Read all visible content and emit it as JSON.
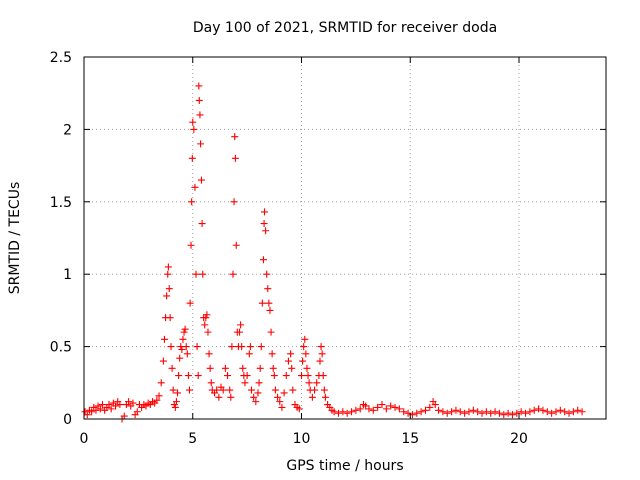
{
  "chart_data": {
    "type": "scatter",
    "title": "Day 100 of 2021, SRMTID for receiver doda",
    "xlabel": "GPS time / hours",
    "ylabel": "SRMTID / TECUs",
    "xlim": [
      0,
      24
    ],
    "ylim": [
      0,
      2.5
    ],
    "xticks": [
      0,
      5,
      10,
      15,
      20
    ],
    "xtick_labels": [
      "0",
      "5",
      "10",
      "15",
      "20"
    ],
    "yticks": [
      0,
      0.5,
      1,
      1.5,
      2,
      2.5
    ],
    "ytick_labels": [
      "0",
      "0.5",
      "1",
      "1.5",
      "2",
      "2.5"
    ],
    "grid": true,
    "marker": "+",
    "series": [
      {
        "name": "SRMTID",
        "color": "#ff0000",
        "points": [
          [
            0.05,
            0.05
          ],
          [
            0.15,
            0.03
          ],
          [
            0.25,
            0.06
          ],
          [
            0.35,
            0.05
          ],
          [
            0.45,
            0.08
          ],
          [
            0.55,
            0.06
          ],
          [
            0.65,
            0.09
          ],
          [
            0.75,
            0.07
          ],
          [
            0.85,
            0.1
          ],
          [
            0.95,
            0.06
          ],
          [
            1.05,
            0.08
          ],
          [
            1.15,
            0.1
          ],
          [
            1.25,
            0.07
          ],
          [
            1.35,
            0.11
          ],
          [
            1.45,
            0.09
          ],
          [
            1.55,
            0.12
          ],
          [
            1.65,
            0.1
          ],
          [
            1.75,
            0.0
          ],
          [
            1.85,
            0.02
          ],
          [
            1.95,
            0.1
          ],
          [
            2.05,
            0.12
          ],
          [
            2.15,
            0.09
          ],
          [
            2.25,
            0.11
          ],
          [
            2.35,
            0.03
          ],
          [
            2.45,
            0.05
          ],
          [
            2.55,
            0.1
          ],
          [
            2.65,
            0.08
          ],
          [
            2.75,
            0.1
          ],
          [
            2.85,
            0.09
          ],
          [
            2.95,
            0.11
          ],
          [
            3.05,
            0.1
          ],
          [
            3.15,
            0.12
          ],
          [
            3.25,
            0.11
          ],
          [
            3.35,
            0.13
          ],
          [
            3.45,
            0.16
          ],
          [
            3.55,
            0.25
          ],
          [
            3.65,
            0.4
          ],
          [
            3.7,
            0.55
          ],
          [
            3.75,
            0.7
          ],
          [
            3.8,
            0.85
          ],
          [
            3.85,
            1.0
          ],
          [
            3.88,
            1.05
          ],
          [
            3.92,
            0.9
          ],
          [
            3.96,
            0.7
          ],
          [
            4.0,
            0.5
          ],
          [
            4.05,
            0.35
          ],
          [
            4.1,
            0.2
          ],
          [
            4.15,
            0.1
          ],
          [
            4.2,
            0.08
          ],
          [
            4.25,
            0.12
          ],
          [
            4.3,
            0.18
          ],
          [
            4.35,
            0.3
          ],
          [
            4.4,
            0.42
          ],
          [
            4.45,
            0.5
          ],
          [
            4.5,
            0.48
          ],
          [
            4.55,
            0.55
          ],
          [
            4.6,
            0.6
          ],
          [
            4.65,
            0.62
          ],
          [
            4.7,
            0.5
          ],
          [
            4.75,
            0.45
          ],
          [
            4.8,
            0.3
          ],
          [
            4.85,
            0.2
          ],
          [
            4.88,
            0.8
          ],
          [
            4.92,
            1.2
          ],
          [
            4.95,
            1.5
          ],
          [
            4.98,
            1.8
          ],
          [
            5.0,
            2.05
          ],
          [
            5.05,
            2.0
          ],
          [
            5.1,
            1.6
          ],
          [
            5.15,
            1.0
          ],
          [
            5.2,
            0.5
          ],
          [
            5.25,
            0.3
          ],
          [
            5.28,
            2.3
          ],
          [
            5.3,
            2.2
          ],
          [
            5.33,
            2.1
          ],
          [
            5.36,
            1.9
          ],
          [
            5.4,
            1.65
          ],
          [
            5.43,
            1.35
          ],
          [
            5.46,
            1.0
          ],
          [
            5.5,
            0.7
          ],
          [
            5.55,
            0.65
          ],
          [
            5.6,
            0.7
          ],
          [
            5.65,
            0.72
          ],
          [
            5.7,
            0.6
          ],
          [
            5.75,
            0.45
          ],
          [
            5.8,
            0.35
          ],
          [
            5.85,
            0.25
          ],
          [
            5.9,
            0.2
          ],
          [
            6.0,
            0.18
          ],
          [
            6.1,
            0.2
          ],
          [
            6.2,
            0.15
          ],
          [
            6.3,
            0.22
          ],
          [
            6.4,
            0.2
          ],
          [
            6.5,
            0.35
          ],
          [
            6.6,
            0.3
          ],
          [
            6.7,
            0.2
          ],
          [
            6.75,
            0.15
          ],
          [
            6.8,
            0.5
          ],
          [
            6.85,
            1.0
          ],
          [
            6.9,
            1.5
          ],
          [
            6.93,
            1.95
          ],
          [
            6.96,
            1.8
          ],
          [
            7.0,
            1.2
          ],
          [
            7.05,
            0.6
          ],
          [
            7.1,
            0.5
          ],
          [
            7.15,
            0.6
          ],
          [
            7.2,
            0.65
          ],
          [
            7.25,
            0.5
          ],
          [
            7.3,
            0.35
          ],
          [
            7.35,
            0.3
          ],
          [
            7.4,
            0.25
          ],
          [
            7.5,
            0.3
          ],
          [
            7.6,
            0.45
          ],
          [
            7.65,
            0.5
          ],
          [
            7.7,
            0.2
          ],
          [
            7.8,
            0.15
          ],
          [
            7.9,
            0.12
          ],
          [
            8.0,
            0.18
          ],
          [
            8.05,
            0.25
          ],
          [
            8.1,
            0.35
          ],
          [
            8.15,
            0.5
          ],
          [
            8.2,
            0.8
          ],
          [
            8.25,
            1.1
          ],
          [
            8.28,
            1.35
          ],
          [
            8.3,
            1.43
          ],
          [
            8.35,
            1.3
          ],
          [
            8.4,
            1.0
          ],
          [
            8.45,
            0.9
          ],
          [
            8.5,
            0.8
          ],
          [
            8.55,
            0.75
          ],
          [
            8.6,
            0.6
          ],
          [
            8.65,
            0.45
          ],
          [
            8.7,
            0.35
          ],
          [
            8.75,
            0.3
          ],
          [
            8.8,
            0.2
          ],
          [
            8.9,
            0.15
          ],
          [
            9.0,
            0.12
          ],
          [
            9.1,
            0.08
          ],
          [
            9.2,
            0.18
          ],
          [
            9.3,
            0.3
          ],
          [
            9.4,
            0.4
          ],
          [
            9.5,
            0.45
          ],
          [
            9.55,
            0.35
          ],
          [
            9.6,
            0.2
          ],
          [
            9.7,
            0.1
          ],
          [
            9.8,
            0.08
          ],
          [
            9.9,
            0.07
          ],
          [
            10.0,
            0.3
          ],
          [
            10.05,
            0.4
          ],
          [
            10.1,
            0.5
          ],
          [
            10.15,
            0.55
          ],
          [
            10.2,
            0.45
          ],
          [
            10.25,
            0.35
          ],
          [
            10.3,
            0.3
          ],
          [
            10.35,
            0.25
          ],
          [
            10.4,
            0.2
          ],
          [
            10.5,
            0.15
          ],
          [
            10.6,
            0.2
          ],
          [
            10.7,
            0.25
          ],
          [
            10.8,
            0.3
          ],
          [
            10.85,
            0.4
          ],
          [
            10.9,
            0.5
          ],
          [
            10.95,
            0.45
          ],
          [
            11.0,
            0.3
          ],
          [
            11.05,
            0.2
          ],
          [
            11.1,
            0.15
          ],
          [
            11.2,
            0.1
          ],
          [
            11.3,
            0.08
          ],
          [
            11.4,
            0.06
          ],
          [
            11.5,
            0.05
          ],
          [
            11.7,
            0.04
          ],
          [
            11.9,
            0.05
          ],
          [
            12.1,
            0.04
          ],
          [
            12.3,
            0.05
          ],
          [
            12.5,
            0.06
          ],
          [
            12.7,
            0.07
          ],
          [
            12.85,
            0.1
          ],
          [
            12.95,
            0.09
          ],
          [
            13.1,
            0.07
          ],
          [
            13.3,
            0.06
          ],
          [
            13.5,
            0.08
          ],
          [
            13.7,
            0.1
          ],
          [
            13.9,
            0.07
          ],
          [
            14.1,
            0.09
          ],
          [
            14.3,
            0.08
          ],
          [
            14.5,
            0.07
          ],
          [
            14.7,
            0.05
          ],
          [
            14.9,
            0.04
          ],
          [
            15.1,
            0.03
          ],
          [
            15.3,
            0.04
          ],
          [
            15.5,
            0.05
          ],
          [
            15.7,
            0.06
          ],
          [
            15.9,
            0.08
          ],
          [
            16.05,
            0.12
          ],
          [
            16.15,
            0.1
          ],
          [
            16.3,
            0.06
          ],
          [
            16.5,
            0.05
          ],
          [
            16.7,
            0.04
          ],
          [
            16.9,
            0.05
          ],
          [
            17.1,
            0.06
          ],
          [
            17.3,
            0.05
          ],
          [
            17.5,
            0.04
          ],
          [
            17.7,
            0.05
          ],
          [
            17.9,
            0.06
          ],
          [
            18.1,
            0.05
          ],
          [
            18.3,
            0.04
          ],
          [
            18.5,
            0.05
          ],
          [
            18.7,
            0.04
          ],
          [
            18.9,
            0.05
          ],
          [
            19.1,
            0.04
          ],
          [
            19.3,
            0.03
          ],
          [
            19.5,
            0.04
          ],
          [
            19.7,
            0.03
          ],
          [
            19.9,
            0.04
          ],
          [
            20.1,
            0.05
          ],
          [
            20.3,
            0.04
          ],
          [
            20.5,
            0.05
          ],
          [
            20.7,
            0.06
          ],
          [
            20.9,
            0.07
          ],
          [
            21.1,
            0.06
          ],
          [
            21.3,
            0.05
          ],
          [
            21.5,
            0.04
          ],
          [
            21.7,
            0.05
          ],
          [
            21.9,
            0.06
          ],
          [
            22.1,
            0.05
          ],
          [
            22.3,
            0.04
          ],
          [
            22.5,
            0.05
          ],
          [
            22.7,
            0.06
          ],
          [
            22.9,
            0.05
          ]
        ]
      }
    ]
  }
}
